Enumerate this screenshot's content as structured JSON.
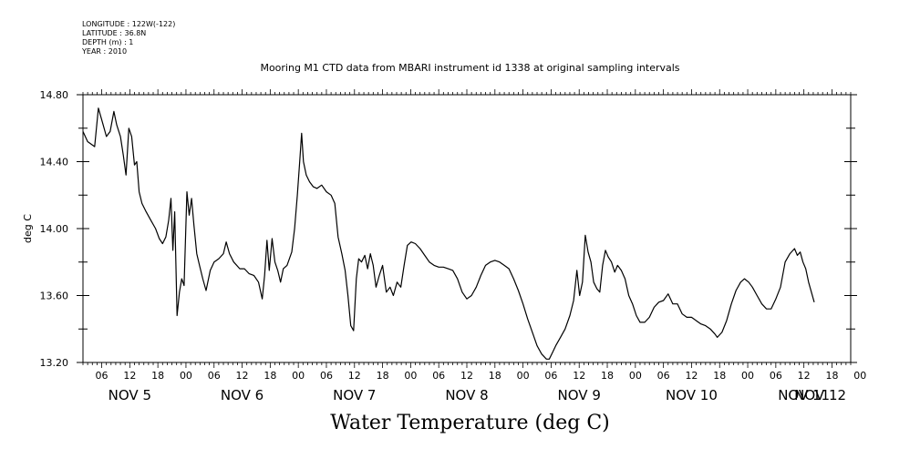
{
  "header": {
    "longitude": "LONGITUDE : 122W(-122)",
    "latitude": "LATITUDE : 36.8N",
    "depth": "DEPTH (m) : 1",
    "year": "YEAR : 2010"
  },
  "plot_title": "Mooring M1 CTD data from MBARI instrument id 1338 at original sampling intervals",
  "chart_data": {
    "type": "line",
    "title": "Water Temperature (deg C)",
    "ylabel": "deg C",
    "xlabel": "",
    "ylim": [
      13.2,
      14.8
    ],
    "xlim_hours_from_nov5_00": [
      2,
      166
    ],
    "y_ticks": [
      "13.20",
      "13.60",
      "14.00",
      "14.40",
      "14.80"
    ],
    "x_minor_ticks": [
      "06",
      "12",
      "18",
      "00",
      "06",
      "12",
      "18",
      "00",
      "06",
      "12",
      "18",
      "00",
      "06",
      "12",
      "18",
      "00",
      "06",
      "12",
      "18",
      "00",
      "06",
      "12",
      "18",
      "00",
      "06",
      "12",
      "18",
      "00"
    ],
    "x_day_labels": [
      "NOV 5",
      "NOV 6",
      "NOV 7",
      "NOV 8",
      "NOV 9",
      "NOV 10",
      "NOV 11",
      "NOV 12"
    ],
    "grid": false,
    "series": [
      {
        "name": "",
        "color": "#000000",
        "points": [
          [
            2,
            14.58
          ],
          [
            3,
            14.52
          ],
          [
            4.5,
            14.49
          ],
          [
            5.3,
            14.72
          ],
          [
            6.2,
            14.63
          ],
          [
            7,
            14.55
          ],
          [
            7.8,
            14.58
          ],
          [
            8.6,
            14.7
          ],
          [
            9.2,
            14.62
          ],
          [
            10,
            14.55
          ],
          [
            10.6,
            14.44
          ],
          [
            11.2,
            14.32
          ],
          [
            11.8,
            14.6
          ],
          [
            12.4,
            14.55
          ],
          [
            13,
            14.38
          ],
          [
            13.5,
            14.4
          ],
          [
            14,
            14.22
          ],
          [
            14.6,
            14.15
          ],
          [
            15.5,
            14.1
          ],
          [
            16.5,
            14.05
          ],
          [
            17.5,
            14.0
          ],
          [
            18.3,
            13.94
          ],
          [
            19,
            13.91
          ],
          [
            19.7,
            13.95
          ],
          [
            20.3,
            14.05
          ],
          [
            20.8,
            14.18
          ],
          [
            21.2,
            13.87
          ],
          [
            21.6,
            14.1
          ],
          [
            22.1,
            13.48
          ],
          [
            22.6,
            13.62
          ],
          [
            23.1,
            13.7
          ],
          [
            23.6,
            13.66
          ],
          [
            24.2,
            14.22
          ],
          [
            24.7,
            14.08
          ],
          [
            25.2,
            14.18
          ],
          [
            25.7,
            14.02
          ],
          [
            26.3,
            13.85
          ],
          [
            26.9,
            13.78
          ],
          [
            27.6,
            13.7
          ],
          [
            28.3,
            13.63
          ],
          [
            29.2,
            13.75
          ],
          [
            30,
            13.8
          ],
          [
            31,
            13.82
          ],
          [
            32,
            13.85
          ],
          [
            32.6,
            13.92
          ],
          [
            33.3,
            13.85
          ],
          [
            34.2,
            13.8
          ],
          [
            35.5,
            13.76
          ],
          [
            36.5,
            13.76
          ],
          [
            37.5,
            13.73
          ],
          [
            38.5,
            13.72
          ],
          [
            39.5,
            13.68
          ],
          [
            40.3,
            13.58
          ],
          [
            40.8,
            13.72
          ],
          [
            41.3,
            13.93
          ],
          [
            41.8,
            13.75
          ],
          [
            42.4,
            13.94
          ],
          [
            43,
            13.8
          ],
          [
            43.6,
            13.75
          ],
          [
            44.2,
            13.68
          ],
          [
            44.8,
            13.76
          ],
          [
            45.6,
            13.78
          ],
          [
            46.6,
            13.86
          ],
          [
            47.2,
            14.0
          ],
          [
            47.8,
            14.2
          ],
          [
            48.3,
            14.4
          ],
          [
            48.7,
            14.57
          ],
          [
            49.1,
            14.4
          ],
          [
            49.7,
            14.32
          ],
          [
            50.4,
            14.28
          ],
          [
            51.2,
            14.25
          ],
          [
            52,
            14.24
          ],
          [
            53,
            14.26
          ],
          [
            54,
            14.22
          ],
          [
            55,
            14.2
          ],
          [
            55.8,
            14.15
          ],
          [
            56.5,
            13.95
          ],
          [
            57.3,
            13.85
          ],
          [
            58,
            13.75
          ],
          [
            58.6,
            13.6
          ],
          [
            59.2,
            13.42
          ],
          [
            59.8,
            13.39
          ],
          [
            60.4,
            13.7
          ],
          [
            60.9,
            13.82
          ],
          [
            61.5,
            13.8
          ],
          [
            62.2,
            13.84
          ],
          [
            62.8,
            13.76
          ],
          [
            63.4,
            13.85
          ],
          [
            64,
            13.78
          ],
          [
            64.6,
            13.65
          ],
          [
            65.3,
            13.72
          ],
          [
            66,
            13.78
          ],
          [
            66.8,
            13.62
          ],
          [
            67.6,
            13.65
          ],
          [
            68.3,
            13.6
          ],
          [
            69.1,
            13.68
          ],
          [
            69.9,
            13.65
          ],
          [
            70.6,
            13.78
          ],
          [
            71.3,
            13.9
          ],
          [
            72.1,
            13.92
          ],
          [
            73,
            13.91
          ],
          [
            74,
            13.88
          ],
          [
            75,
            13.84
          ],
          [
            76,
            13.8
          ],
          [
            77,
            13.78
          ],
          [
            78,
            13.77
          ],
          [
            79,
            13.77
          ],
          [
            80,
            13.76
          ],
          [
            81,
            13.75
          ],
          [
            82,
            13.7
          ],
          [
            83,
            13.62
          ],
          [
            84,
            13.58
          ],
          [
            85,
            13.6
          ],
          [
            86,
            13.65
          ],
          [
            87,
            13.72
          ],
          [
            88,
            13.78
          ],
          [
            89,
            13.8
          ],
          [
            90,
            13.81
          ],
          [
            91,
            13.8
          ],
          [
            92,
            13.78
          ],
          [
            93,
            13.76
          ],
          [
            94,
            13.7
          ],
          [
            95,
            13.63
          ],
          [
            96,
            13.55
          ],
          [
            97,
            13.46
          ],
          [
            98,
            13.38
          ],
          [
            99,
            13.3
          ],
          [
            100,
            13.25
          ],
          [
            101,
            13.22
          ],
          [
            101.6,
            13.22
          ],
          [
            102.3,
            13.26
          ],
          [
            103,
            13.3
          ],
          [
            104,
            13.35
          ],
          [
            105,
            13.4
          ],
          [
            106,
            13.48
          ],
          [
            106.8,
            13.57
          ],
          [
            107.5,
            13.75
          ],
          [
            108.1,
            13.6
          ],
          [
            108.7,
            13.68
          ],
          [
            109.3,
            13.96
          ],
          [
            109.9,
            13.86
          ],
          [
            110.5,
            13.8
          ],
          [
            111.1,
            13.68
          ],
          [
            111.8,
            13.64
          ],
          [
            112.4,
            13.62
          ],
          [
            113,
            13.78
          ],
          [
            113.6,
            13.87
          ],
          [
            114.2,
            13.83
          ],
          [
            114.9,
            13.8
          ],
          [
            115.6,
            13.74
          ],
          [
            116.2,
            13.78
          ],
          [
            117,
            13.75
          ],
          [
            117.8,
            13.7
          ],
          [
            118.6,
            13.6
          ],
          [
            119.4,
            13.55
          ],
          [
            120.2,
            13.48
          ],
          [
            121,
            13.44
          ],
          [
            122,
            13.44
          ],
          [
            123,
            13.47
          ],
          [
            124,
            13.53
          ],
          [
            125,
            13.56
          ],
          [
            126,
            13.57
          ],
          [
            127,
            13.61
          ],
          [
            128,
            13.55
          ],
          [
            129,
            13.55
          ],
          [
            130,
            13.49
          ],
          [
            131,
            13.47
          ],
          [
            132,
            13.47
          ],
          [
            133,
            13.45
          ],
          [
            134,
            13.43
          ],
          [
            135,
            13.42
          ],
          [
            136,
            13.4
          ],
          [
            137,
            13.37
          ],
          [
            137.5,
            13.35
          ],
          [
            138.5,
            13.38
          ],
          [
            139.5,
            13.45
          ],
          [
            140.5,
            13.55
          ],
          [
            141.5,
            13.63
          ],
          [
            142.5,
            13.68
          ],
          [
            143.3,
            13.7
          ],
          [
            144.2,
            13.68
          ],
          [
            145,
            13.65
          ],
          [
            146,
            13.6
          ],
          [
            147,
            13.55
          ],
          [
            148,
            13.52
          ],
          [
            149,
            13.52
          ],
          [
            150,
            13.58
          ],
          [
            151,
            13.65
          ],
          [
            152,
            13.8
          ],
          [
            153,
            13.85
          ],
          [
            154,
            13.88
          ],
          [
            154.6,
            13.84
          ],
          [
            155.2,
            13.86
          ],
          [
            155.8,
            13.8
          ],
          [
            156.4,
            13.76
          ],
          [
            157,
            13.68
          ],
          [
            157.6,
            13.62
          ],
          [
            158.2,
            13.56
          ]
        ]
      }
    ]
  }
}
